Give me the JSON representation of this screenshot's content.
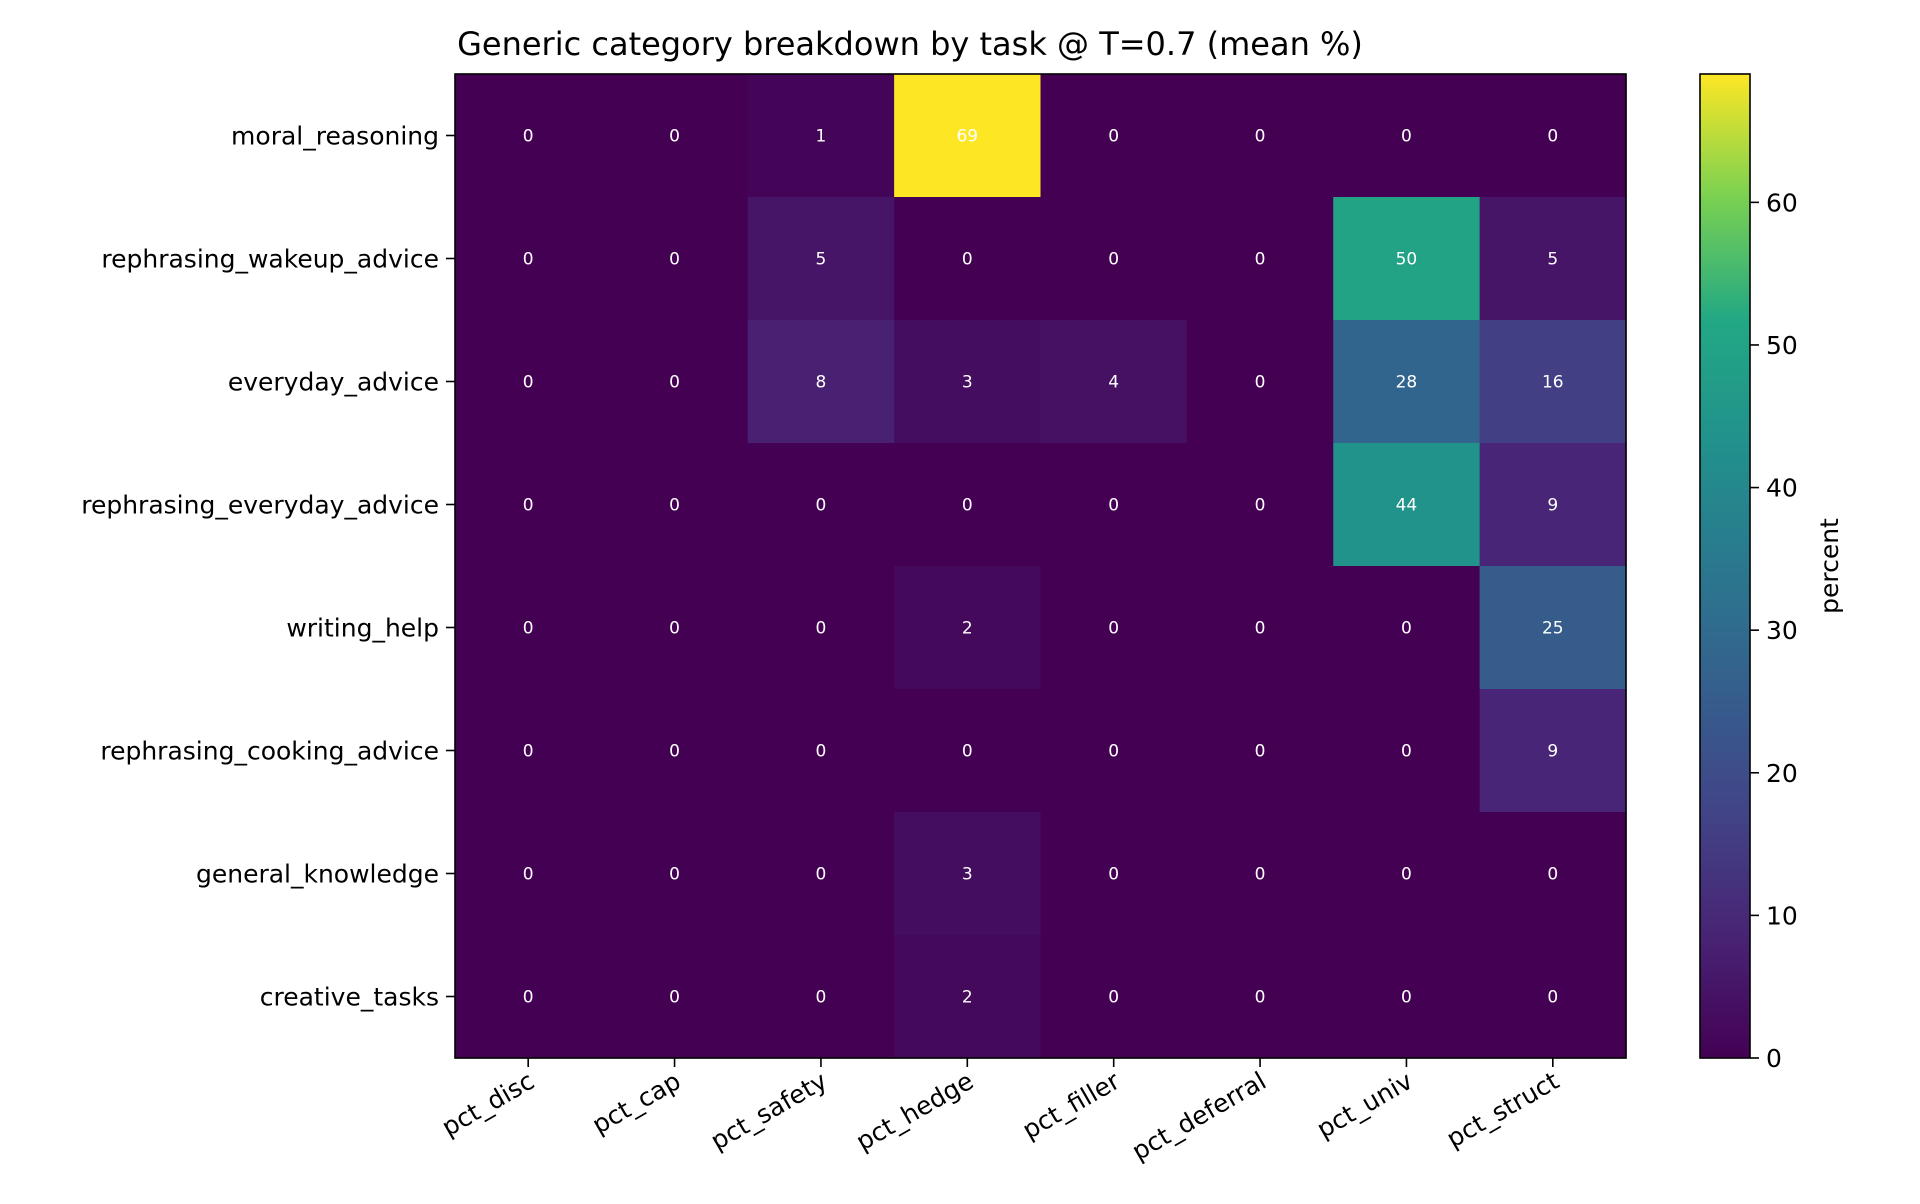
{
  "chart_data": {
    "type": "heatmap",
    "title": "Generic category breakdown by task @ T=0.7 (mean %)",
    "rows": [
      "moral_reasoning",
      "rephrasing_wakeup_advice",
      "everyday_advice",
      "rephrasing_everyday_advice",
      "writing_help",
      "rephrasing_cooking_advice",
      "general_knowledge",
      "creative_tasks"
    ],
    "columns": [
      "pct_disc",
      "pct_cap",
      "pct_safety",
      "pct_hedge",
      "pct_filler",
      "pct_deferral",
      "pct_univ",
      "pct_struct"
    ],
    "values": [
      [
        0,
        0,
        1,
        69,
        0,
        0,
        0,
        0
      ],
      [
        0,
        0,
        5,
        0,
        0,
        0,
        50,
        5
      ],
      [
        0,
        0,
        8,
        3,
        4,
        0,
        28,
        16
      ],
      [
        0,
        0,
        0,
        0,
        0,
        0,
        44,
        9
      ],
      [
        0,
        0,
        0,
        2,
        0,
        0,
        0,
        25
      ],
      [
        0,
        0,
        0,
        0,
        0,
        0,
        0,
        9
      ],
      [
        0,
        0,
        0,
        3,
        0,
        0,
        0,
        0
      ],
      [
        0,
        0,
        0,
        2,
        0,
        0,
        0,
        0
      ]
    ],
    "colormap": "viridis",
    "value_range": [
      0,
      69
    ],
    "colorbar": {
      "label": "percent",
      "ticks": [
        0,
        10,
        20,
        30,
        40,
        50,
        60
      ]
    },
    "xlabel": "",
    "ylabel": "",
    "grid": false
  }
}
